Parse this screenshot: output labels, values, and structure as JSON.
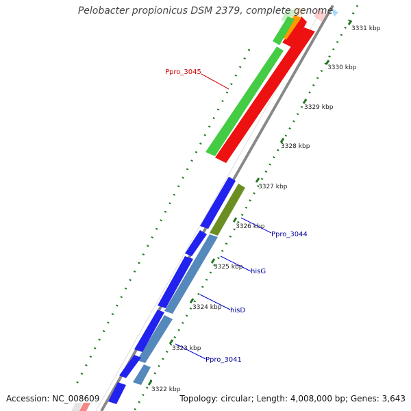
{
  "header": {
    "title": "Pelobacter propionicus DSM 2379, complete genome"
  },
  "footer": {
    "accession": "Accession: NC_008609",
    "summary": "Topology: circular; Length: 4,008,000 bp; Genes: 3,643"
  },
  "ticks": [
    "3331 kbp",
    "3330 kbp",
    "3329 kbp",
    "3328 kbp",
    "3327 kbp",
    "3326 kbp",
    "3325 kbp",
    "3324 kbp",
    "3323 kbp",
    "3322 kbp"
  ],
  "gene_labels": [
    {
      "name": "gene-label-ppro-3045",
      "text": "Ppro_3045",
      "color": "#cc0000"
    },
    {
      "name": "gene-label-ppro-3044",
      "text": "Ppro_3044",
      "color": "#000099"
    },
    {
      "name": "gene-label-hisg",
      "text": "hisG",
      "color": "#000099"
    },
    {
      "name": "gene-label-hisd",
      "text": "hisD",
      "color": "#000099"
    },
    {
      "name": "gene-label-ppro-3041",
      "text": "Ppro_3041",
      "color": "#000099"
    }
  ],
  "colors": {
    "cds_forward": "#2222ee",
    "cds_reverse_red": "#ee1111",
    "cds_green": "#44cc44",
    "cds_steelblue": "#5588bb",
    "cds_olive": "#6b8e23",
    "cds_orange": "#ff9900",
    "backbone": "#888888",
    "tick": "#227722"
  }
}
